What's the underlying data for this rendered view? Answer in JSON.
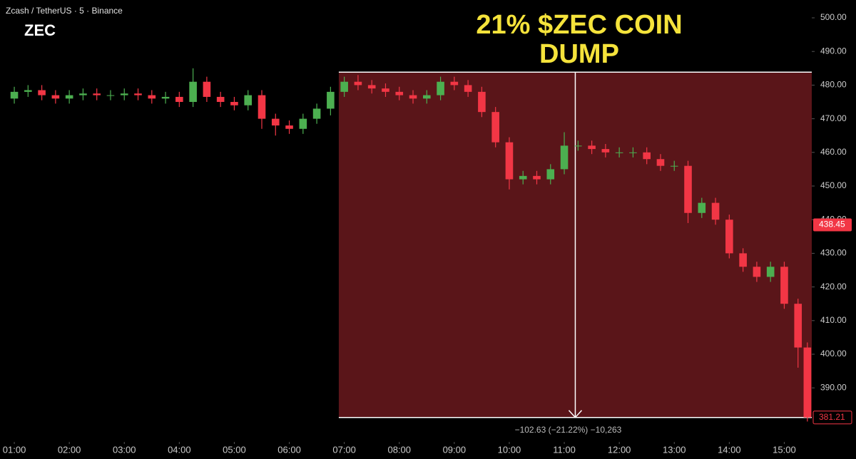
{
  "chart_data": {
    "type": "candlestick",
    "symbol": "Zcash / TetherUS · 5 · Binance",
    "ticker": "ZEC",
    "title": [
      "21% $ZEC COIN",
      "DUMP"
    ],
    "up_color": "#4caf50",
    "down_color": "#f23645",
    "xlim": [
      0.74,
      15.5
    ],
    "ylim": [
      375,
      505.3
    ],
    "xticks": [
      {
        "value": 1,
        "label": "01:00"
      },
      {
        "value": 2,
        "label": "02:00"
      },
      {
        "value": 3,
        "label": "03:00"
      },
      {
        "value": 4,
        "label": "04:00"
      },
      {
        "value": 5,
        "label": "05:00"
      },
      {
        "value": 6,
        "label": "06:00"
      },
      {
        "value": 7,
        "label": "07:00"
      },
      {
        "value": 8,
        "label": "08:00"
      },
      {
        "value": 9,
        "label": "09:00"
      },
      {
        "value": 10,
        "label": "10:00"
      },
      {
        "value": 11,
        "label": "11:00"
      },
      {
        "value": 12,
        "label": "12:00"
      },
      {
        "value": 13,
        "label": "13:00"
      },
      {
        "value": 14,
        "label": "14:00"
      },
      {
        "value": 15,
        "label": "15:00"
      }
    ],
    "yticks": [
      {
        "value": 390,
        "label": "390.00"
      },
      {
        "value": 400,
        "label": "400.00"
      },
      {
        "value": 410,
        "label": "410.00"
      },
      {
        "value": 420,
        "label": "420.00"
      },
      {
        "value": 430,
        "label": "430.00"
      },
      {
        "value": 440,
        "label": "440.00"
      },
      {
        "value": 450,
        "label": "450.00"
      },
      {
        "value": 460,
        "label": "460.00"
      },
      {
        "value": 470,
        "label": "470.00"
      },
      {
        "value": 480,
        "label": "480.00"
      },
      {
        "value": 490,
        "label": "490.00"
      },
      {
        "value": 500,
        "label": "500.00"
      }
    ],
    "x": [
      1,
      1.25,
      1.5,
      1.75,
      2,
      2.25,
      2.5,
      2.75,
      3,
      3.25,
      3.5,
      3.75,
      4,
      4.25,
      4.5,
      4.75,
      5,
      5.25,
      5.5,
      5.75,
      6,
      6.25,
      6.5,
      6.75,
      7,
      7.25,
      7.5,
      7.75,
      8,
      8.25,
      8.5,
      8.75,
      9,
      9.25,
      9.5,
      9.75,
      10,
      10.25,
      10.5,
      10.75,
      11,
      11.25,
      11.5,
      11.75,
      12,
      12.25,
      12.5,
      12.75,
      13,
      13.25,
      13.5,
      13.75,
      14,
      14.25,
      14.5,
      14.75,
      15,
      15.25,
      15.42
    ],
    "open": [
      476,
      478,
      478.5,
      477,
      476,
      477,
      477.5,
      477,
      477,
      477.5,
      477,
      476,
      476.5,
      475,
      481,
      476.5,
      475,
      474,
      477,
      470,
      468,
      467,
      470,
      473,
      478,
      481,
      480,
      479,
      478,
      477,
      476,
      477,
      481,
      480,
      478,
      472,
      463,
      452,
      453,
      452,
      455,
      462,
      462,
      461,
      460,
      460,
      460,
      458,
      456,
      456,
      442,
      445,
      440,
      430,
      426,
      423,
      426,
      415,
      402
    ],
    "high": [
      479.5,
      480,
      480,
      478.5,
      478.5,
      479,
      479,
      478.5,
      479,
      479,
      478.5,
      478,
      478,
      485,
      482.5,
      478,
      476.5,
      478.5,
      478.5,
      471.5,
      469.5,
      471.5,
      474.5,
      479.5,
      482.5,
      483,
      481.5,
      480.5,
      479.5,
      478.5,
      478.5,
      482.5,
      482.5,
      481.5,
      479.5,
      473.5,
      464.5,
      454.5,
      454.5,
      456.5,
      466,
      463.5,
      463.5,
      462.5,
      461.5,
      461.5,
      461.5,
      459.5,
      457.5,
      457.5,
      446.5,
      446.5,
      441.5,
      431.5,
      427.5,
      427.5,
      427.5,
      416.5,
      403.5
    ],
    "low": [
      474.5,
      476.5,
      475.5,
      474.5,
      474.5,
      475.5,
      475.5,
      475.5,
      475.5,
      475.5,
      474.5,
      474.5,
      473.5,
      473.5,
      475,
      473.5,
      472.5,
      472.5,
      467,
      465,
      465.5,
      465.5,
      468.5,
      471,
      476.5,
      478.5,
      477.5,
      476.5,
      475.5,
      474.5,
      474.5,
      475.5,
      478.5,
      476.5,
      470.5,
      461.5,
      449,
      450.5,
      450.5,
      450.5,
      453.5,
      460.5,
      459.5,
      458.5,
      458.5,
      458.5,
      456.5,
      454.5,
      454.5,
      439,
      440.5,
      438.5,
      428.5,
      424.5,
      421.5,
      421.5,
      413.5,
      396,
      380
    ],
    "close": [
      478,
      478.5,
      477,
      476,
      477,
      477.5,
      477,
      477,
      477.5,
      477,
      476,
      476.5,
      475,
      481,
      476.5,
      475,
      474,
      477,
      470,
      468,
      467,
      470,
      473,
      478,
      481,
      480,
      479,
      478,
      477,
      476,
      477,
      481,
      480,
      478,
      472,
      463,
      452,
      453,
      452,
      455,
      462,
      462,
      461,
      460,
      460,
      460,
      458,
      456,
      456,
      442,
      445,
      440,
      430,
      426,
      423,
      426,
      415,
      402,
      381.21
    ],
    "measure": {
      "x0": 6.9,
      "x1": 15.5,
      "high": 483.84,
      "low": 381.21,
      "label": "−102.63 (−21.22%) −10,263"
    },
    "alert_price": 438.45,
    "last_price": 381.21
  }
}
